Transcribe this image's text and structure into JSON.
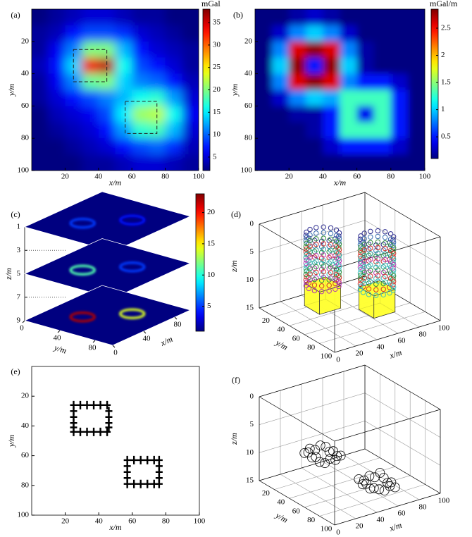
{
  "chart_data": [
    {
      "type": "heatmap",
      "label": "(a)",
      "xlabel": "x/m",
      "ylabel": "y/m",
      "x": [
        5,
        15,
        25,
        35,
        45,
        55,
        65,
        75,
        85,
        95
      ],
      "y": [
        5,
        15,
        25,
        35,
        45,
        55,
        65,
        75,
        85,
        95
      ],
      "values": [
        [
          2,
          3,
          4,
          5,
          5,
          4,
          3,
          3,
          2,
          2
        ],
        [
          3,
          4,
          7,
          9,
          9,
          8,
          5,
          4,
          3,
          2
        ],
        [
          3,
          6,
          11,
          20,
          20,
          13,
          7,
          5,
          4,
          3
        ],
        [
          4,
          7,
          14,
          34,
          36,
          16,
          9,
          7,
          5,
          3
        ],
        [
          3,
          6,
          11,
          19,
          20,
          14,
          11,
          10,
          7,
          4
        ],
        [
          3,
          5,
          7,
          9,
          11,
          13,
          16,
          17,
          12,
          5
        ],
        [
          2,
          4,
          5,
          6,
          9,
          15,
          21,
          22,
          16,
          6
        ],
        [
          2,
          3,
          4,
          5,
          7,
          12,
          17,
          18,
          13,
          5
        ],
        [
          2,
          2,
          3,
          4,
          5,
          7,
          9,
          10,
          8,
          4
        ],
        [
          2,
          2,
          2,
          3,
          3,
          4,
          5,
          5,
          4,
          3
        ]
      ],
      "xlim": [
        0,
        100
      ],
      "ylim": [
        0,
        100
      ],
      "y_inverted": true,
      "xticks": [
        20,
        40,
        60,
        80,
        100
      ],
      "yticks": [
        20,
        40,
        60,
        80,
        100
      ],
      "colormap": "jet",
      "colorbar": {
        "label": "mGal",
        "lim": [
          2,
          38
        ],
        "ticks": [
          5,
          10,
          15,
          20,
          25,
          30,
          35
        ]
      },
      "boxes": [
        {
          "x": [
            25,
            45
          ],
          "y": [
            25,
            45
          ]
        },
        {
          "x": [
            56,
            75
          ],
          "y": [
            57,
            77
          ]
        }
      ]
    },
    {
      "type": "heatmap",
      "label": "(b)",
      "xlabel": "x/m",
      "ylabel": "y/m",
      "x": [
        5,
        15,
        25,
        35,
        45,
        55,
        65,
        75,
        85,
        95
      ],
      "y": [
        5,
        15,
        25,
        35,
        45,
        55,
        65,
        75,
        85,
        95
      ],
      "values": [
        [
          0.1,
          0.1,
          0.2,
          0.3,
          0.2,
          0.1,
          0.1,
          0.1,
          0.1,
          0.1
        ],
        [
          0.1,
          0.3,
          0.8,
          1.0,
          0.8,
          0.3,
          0.1,
          0.1,
          0.1,
          0.1
        ],
        [
          0.1,
          0.8,
          2.6,
          2.8,
          2.6,
          0.8,
          0.2,
          0.1,
          0.1,
          0.1
        ],
        [
          0.1,
          1.0,
          2.8,
          0.5,
          2.8,
          1.0,
          0.2,
          0.1,
          0.1,
          0.1
        ],
        [
          0.1,
          0.8,
          2.6,
          2.8,
          2.6,
          0.8,
          0.5,
          0.5,
          0.3,
          0.1
        ],
        [
          0.1,
          0.3,
          0.8,
          1.0,
          0.9,
          1.3,
          1.3,
          1.3,
          0.5,
          0.1
        ],
        [
          0.1,
          0.1,
          0.2,
          0.2,
          0.5,
          1.3,
          0.4,
          1.3,
          0.5,
          0.1
        ],
        [
          0.1,
          0.1,
          0.1,
          0.2,
          0.5,
          1.3,
          1.3,
          1.3,
          0.5,
          0.1
        ],
        [
          0.1,
          0.1,
          0.1,
          0.1,
          0.3,
          0.5,
          0.5,
          0.5,
          0.3,
          0.1
        ],
        [
          0.1,
          0.1,
          0.1,
          0.1,
          0.1,
          0.1,
          0.1,
          0.1,
          0.1,
          0.1
        ]
      ],
      "xlim": [
        0,
        100
      ],
      "ylim": [
        0,
        100
      ],
      "y_inverted": true,
      "xticks": [
        20,
        40,
        60,
        80,
        100
      ],
      "yticks": [
        20,
        40,
        60,
        80,
        100
      ],
      "colormap": "jet",
      "colorbar": {
        "label": "mGal/m",
        "lim": [
          0.1,
          2.85
        ],
        "ticks": [
          0.5,
          1.0,
          1.5,
          2.0,
          2.5
        ]
      }
    },
    {
      "type": "slices3d",
      "label": "(c)",
      "xlabel": "x/m",
      "ylabel": "y/m",
      "zlabel": "z/m",
      "xlim": [
        0,
        100
      ],
      "ylim": [
        0,
        100
      ],
      "zlim": [
        1,
        9
      ],
      "xticks": [
        0,
        40,
        80
      ],
      "yticks": [
        0,
        40,
        80
      ],
      "zticks": [
        1,
        3,
        5,
        7,
        9
      ],
      "slices": [
        {
          "z": 1,
          "anomalies": [
            {
              "x": 35,
              "y": 35,
              "value": 5
            },
            {
              "x": 65,
              "y": 65,
              "value": 4
            }
          ]
        },
        {
          "z": 5,
          "anomalies": [
            {
              "x": 35,
              "y": 35,
              "value": 11
            },
            {
              "x": 65,
              "y": 65,
              "value": 5
            }
          ]
        },
        {
          "z": 9,
          "anomalies": [
            {
              "x": 35,
              "y": 35,
              "value": 22
            },
            {
              "x": 65,
              "y": 65,
              "value": 14
            }
          ]
        }
      ],
      "colormap": "jet",
      "colorbar": {
        "lim": [
          1,
          23
        ],
        "ticks": [
          5,
          10,
          15,
          20
        ]
      }
    },
    {
      "type": "scatter3d",
      "label": "(d)",
      "xlabel": "x/m",
      "ylabel": "y/m",
      "zlabel": "z/m",
      "xlim": [
        0,
        100
      ],
      "ylim": [
        0,
        100
      ],
      "zlim": [
        0,
        15
      ],
      "xticks": [
        0,
        20,
        40,
        60,
        80,
        100
      ],
      "yticks": [
        20,
        40,
        60,
        80,
        100
      ],
      "zticks": [
        0,
        5,
        10,
        15
      ],
      "rings": [
        {
          "x": 35,
          "y": 35,
          "z": 1,
          "color": "#2e2e8f"
        },
        {
          "x": 35,
          "y": 35,
          "z": 2,
          "color": "#3a6fb0"
        },
        {
          "x": 35,
          "y": 35,
          "z": 3,
          "color": "#2e8b3e"
        },
        {
          "x": 35,
          "y": 35,
          "z": 4,
          "color": "#d0342c"
        },
        {
          "x": 35,
          "y": 35,
          "z": 5,
          "color": "#2aa198"
        },
        {
          "x": 35,
          "y": 35,
          "z": 6,
          "color": "#b03ab0"
        },
        {
          "x": 35,
          "y": 35,
          "z": 7,
          "color": "#3fbfbf"
        },
        {
          "x": 35,
          "y": 35,
          "z": 8,
          "color": "#2e8b3e"
        },
        {
          "x": 35,
          "y": 35,
          "z": 9,
          "color": "#d0342c"
        },
        {
          "x": 35,
          "y": 35,
          "z": 10,
          "color": "#b03ab0"
        },
        {
          "x": 65,
          "y": 65,
          "z": 1,
          "color": "#2e2e8f"
        },
        {
          "x": 65,
          "y": 65,
          "z": 2,
          "color": "#3a6fb0"
        },
        {
          "x": 65,
          "y": 65,
          "z": 3,
          "color": "#2e8b3e"
        },
        {
          "x": 65,
          "y": 65,
          "z": 4,
          "color": "#d0342c"
        },
        {
          "x": 65,
          "y": 65,
          "z": 5,
          "color": "#2aa198"
        },
        {
          "x": 65,
          "y": 65,
          "z": 6,
          "color": "#b03ab0"
        },
        {
          "x": 65,
          "y": 65,
          "z": 7,
          "color": "#3fbfbf"
        },
        {
          "x": 65,
          "y": 65,
          "z": 8,
          "color": "#2e8b3e"
        },
        {
          "x": 65,
          "y": 65,
          "z": 9,
          "color": "#d0342c"
        },
        {
          "x": 65,
          "y": 65,
          "z": 10,
          "color": "#3fbfbf"
        }
      ],
      "bodies": [
        {
          "x": [
            25,
            45
          ],
          "y": [
            25,
            45
          ],
          "z": [
            10,
            14
          ],
          "color": "#ffff33"
        },
        {
          "x": [
            55,
            75
          ],
          "y": [
            55,
            75
          ],
          "z": [
            10,
            14
          ],
          "color": "#ffff33"
        }
      ]
    },
    {
      "type": "scatter",
      "label": "(e)",
      "xlabel": "x/m",
      "ylabel": "y/m",
      "marker": "+",
      "x": [
        25,
        29,
        33,
        37,
        41,
        45,
        25,
        29,
        33,
        37,
        41,
        45,
        25,
        25,
        25,
        25,
        46,
        46,
        46,
        46,
        57,
        61,
        65,
        69,
        73,
        76,
        57,
        61,
        65,
        69,
        73,
        76,
        57,
        57,
        57,
        76,
        76,
        76
      ],
      "y": [
        26,
        26,
        26,
        26,
        26,
        26,
        44,
        44,
        44,
        44,
        44,
        44,
        30,
        34,
        38,
        41,
        30,
        34,
        38,
        41,
        63,
        63,
        63,
        63,
        63,
        63,
        79,
        79,
        79,
        79,
        79,
        79,
        67,
        71,
        75,
        67,
        71,
        75
      ],
      "xlim": [
        0,
        100
      ],
      "ylim": [
        0,
        100
      ],
      "y_inverted": true,
      "xticks": [
        20,
        40,
        60,
        80,
        100
      ],
      "yticks": [
        20,
        40,
        60,
        80,
        100
      ]
    },
    {
      "type": "scatter3d",
      "label": "(f)",
      "xlabel": "x/m",
      "ylabel": "y/m",
      "zlabel": "z/m",
      "xlim": [
        0,
        100
      ],
      "ylim": [
        0,
        100
      ],
      "zlim": [
        0,
        15
      ],
      "xticks": [
        0,
        20,
        40,
        60,
        80,
        100
      ],
      "yticks": [
        20,
        40,
        60,
        80,
        100
      ],
      "zticks": [
        0,
        5,
        10,
        15
      ],
      "points": {
        "x": [
          25,
          30,
          35,
          40,
          45,
          45,
          45,
          45,
          45,
          40,
          35,
          30,
          25,
          25,
          25,
          25,
          55,
          60,
          65,
          70,
          75,
          75,
          75,
          75,
          75,
          70,
          65,
          60,
          55,
          55,
          55,
          55
        ],
        "y": [
          25,
          25,
          25,
          25,
          25,
          30,
          35,
          40,
          45,
          45,
          45,
          45,
          45,
          40,
          35,
          30,
          55,
          55,
          55,
          55,
          55,
          60,
          65,
          70,
          75,
          75,
          75,
          75,
          75,
          70,
          65,
          60
        ],
        "z": [
          9.5,
          9,
          9.5,
          9,
          9.5,
          10,
          9.5,
          10,
          9.5,
          10,
          9.5,
          10,
          9.5,
          9,
          9.5,
          9,
          13.5,
          14,
          13.5,
          14,
          13.5,
          14,
          14.5,
          14,
          14.5,
          14,
          14.5,
          14,
          13.5,
          14,
          13.5,
          14
        ]
      }
    }
  ]
}
